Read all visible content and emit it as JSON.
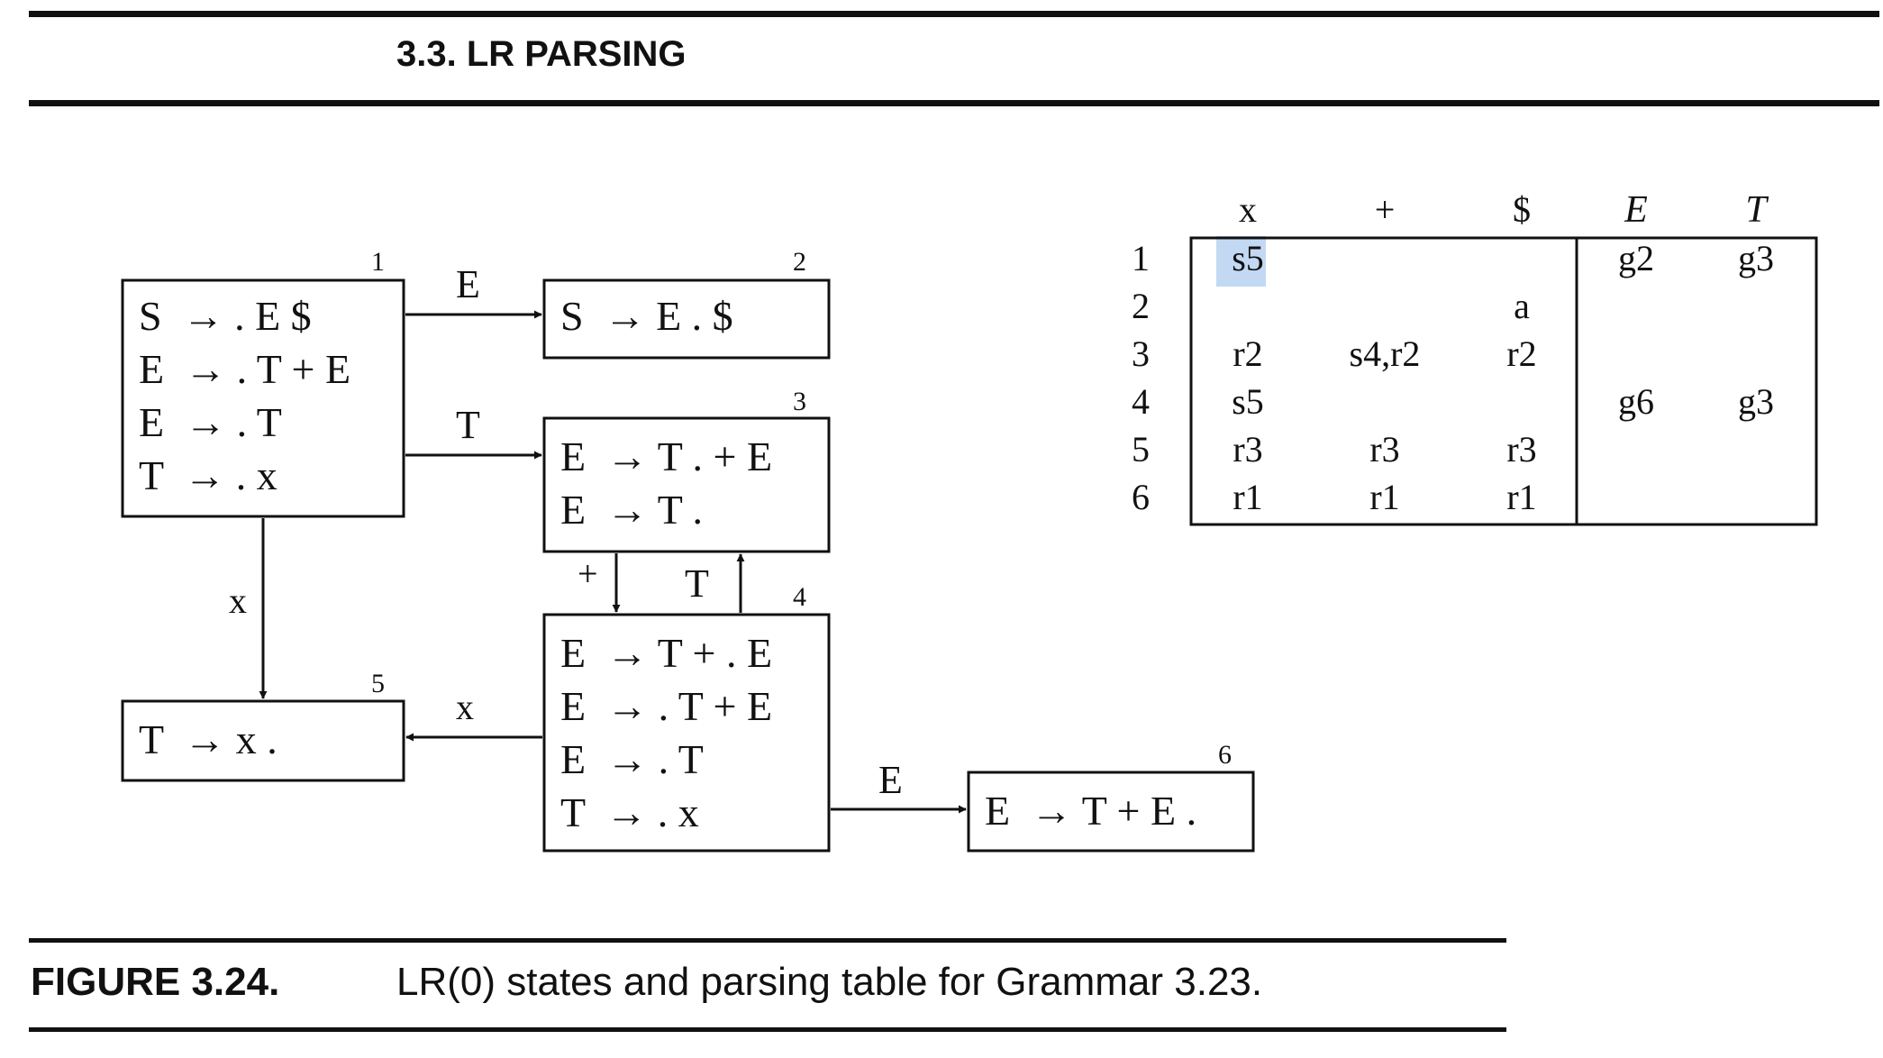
{
  "header": {
    "section_title": "3.3. LR PARSING"
  },
  "states": [
    {
      "id": "1",
      "items": [
        "S  → . E $",
        "E  → . T + E",
        "E  → . T",
        "T  → . x"
      ]
    },
    {
      "id": "2",
      "items": [
        "S  → E . $"
      ]
    },
    {
      "id": "3",
      "items": [
        "E  → T . + E",
        "E  → T ."
      ]
    },
    {
      "id": "4",
      "items": [
        "E  → T + . E",
        "E  → . T + E",
        "E  → . T",
        "T  → . x"
      ]
    },
    {
      "id": "5",
      "items": [
        "T  → x ."
      ]
    },
    {
      "id": "6",
      "items": [
        "E  → T + E ."
      ]
    }
  ],
  "transitions": [
    {
      "from": "1",
      "to": "2",
      "label": "E"
    },
    {
      "from": "1",
      "to": "3",
      "label": "T"
    },
    {
      "from": "1",
      "to": "5",
      "label": "x"
    },
    {
      "from": "3",
      "to": "4",
      "label": "+"
    },
    {
      "from": "4",
      "to": "3",
      "label": "T"
    },
    {
      "from": "4",
      "to": "5",
      "label": "x"
    },
    {
      "from": "4",
      "to": "6",
      "label": "E"
    }
  ],
  "table": {
    "columns": [
      "x",
      "+",
      "$",
      "E",
      "T"
    ],
    "rows": [
      {
        "state": "1",
        "cells": [
          "s5",
          "",
          "",
          "g2",
          "g3"
        ]
      },
      {
        "state": "2",
        "cells": [
          "",
          "",
          "a",
          "",
          ""
        ]
      },
      {
        "state": "3",
        "cells": [
          "r2",
          "s4,r2",
          "r2",
          "",
          ""
        ]
      },
      {
        "state": "4",
        "cells": [
          "s5",
          "",
          "",
          "g6",
          "g3"
        ]
      },
      {
        "state": "5",
        "cells": [
          "r3",
          "r3",
          "r3",
          "",
          ""
        ]
      },
      {
        "state": "6",
        "cells": [
          "r1",
          "r1",
          "r1",
          "",
          ""
        ]
      }
    ],
    "highlight_color": "#c3d9f3"
  },
  "caption": {
    "label": "FIGURE 3.24.",
    "text": "LR(0) states and parsing table for Grammar 3.23."
  }
}
